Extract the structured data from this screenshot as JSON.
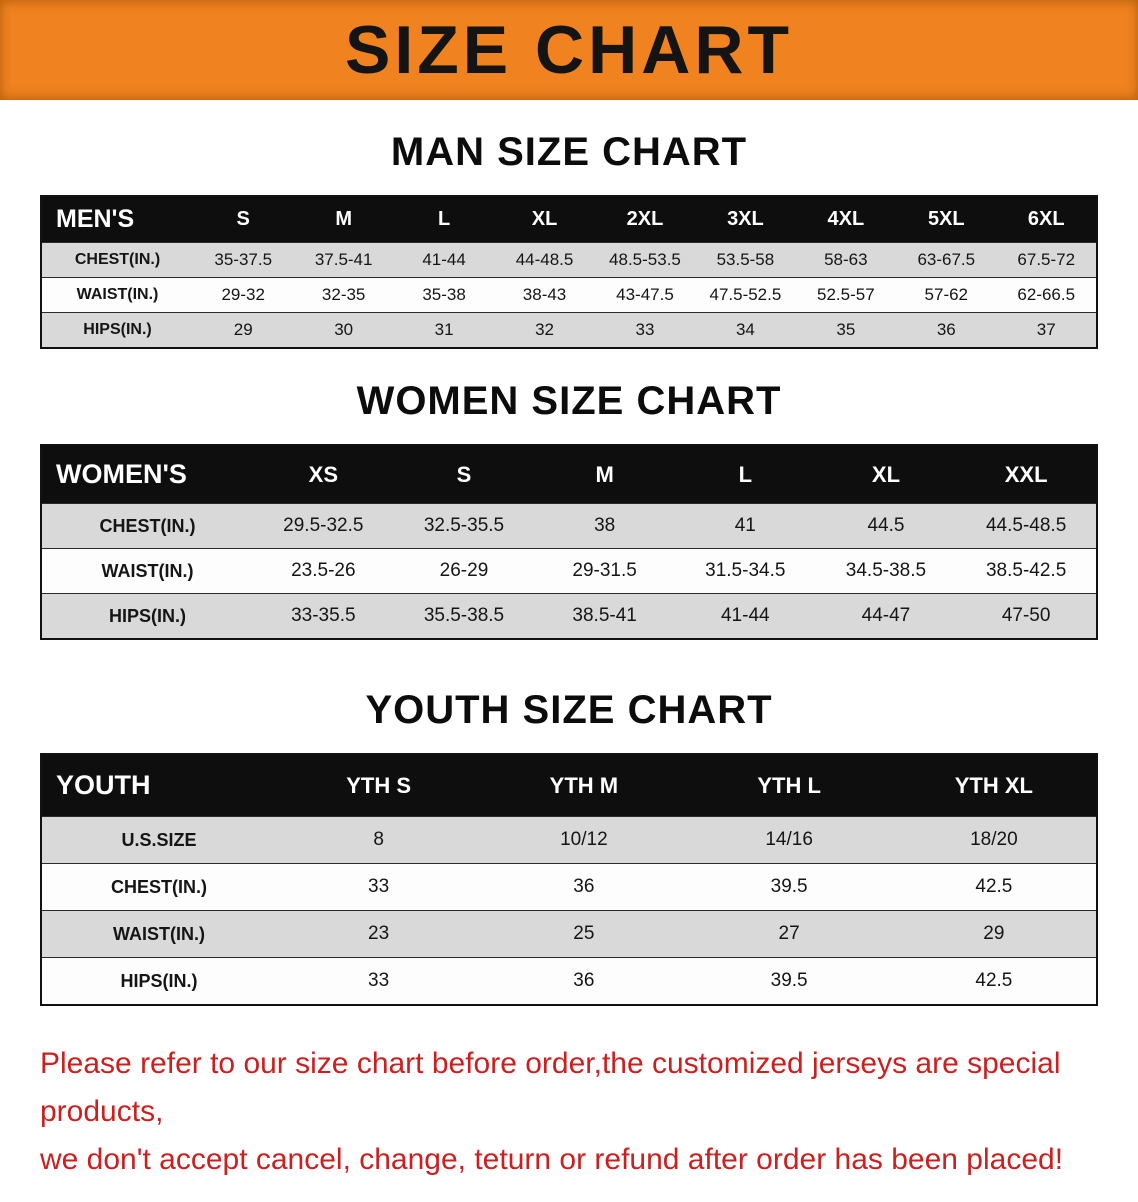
{
  "banner": {
    "title": "SIZE CHART",
    "background_color": "#f0831f",
    "text_color": "#141414"
  },
  "sections": [
    {
      "heading": "MAN SIZE CHART",
      "table": {
        "header": [
          "MEN'S",
          "S",
          "M",
          "L",
          "XL",
          "2XL",
          "3XL",
          "4XL",
          "5XL",
          "6XL"
        ],
        "rows": [
          [
            "CHEST(IN.)",
            "35-37.5",
            "37.5-41",
            "41-44",
            "44-48.5",
            "48.5-53.5",
            "53.5-58",
            "58-63",
            "63-67.5",
            "67.5-72"
          ],
          [
            "WAIST(IN.)",
            "29-32",
            "32-35",
            "35-38",
            "38-43",
            "43-47.5",
            "47.5-52.5",
            "52.5-57",
            "57-62",
            "62-66.5"
          ],
          [
            "HIPS(IN.)",
            "29",
            "30",
            "31",
            "32",
            "33",
            "34",
            "35",
            "36",
            "37"
          ]
        ]
      }
    },
    {
      "heading": "WOMEN SIZE CHART",
      "table": {
        "header": [
          "WOMEN'S",
          "XS",
          "S",
          "M",
          "L",
          "XL",
          "XXL"
        ],
        "rows": [
          [
            "CHEST(IN.)",
            "29.5-32.5",
            "32.5-35.5",
            "38",
            "41",
            "44.5",
            "44.5-48.5"
          ],
          [
            "WAIST(IN.)",
            "23.5-26",
            "26-29",
            "29-31.5",
            "31.5-34.5",
            "34.5-38.5",
            "38.5-42.5"
          ],
          [
            "HIPS(IN.)",
            "33-35.5",
            "35.5-38.5",
            "38.5-41",
            "41-44",
            "44-47",
            "47-50"
          ]
        ]
      }
    },
    {
      "heading": "YOUTH SIZE CHART",
      "table": {
        "header": [
          "YOUTH",
          "YTH S",
          "YTH M",
          "YTH L",
          "YTH XL"
        ],
        "rows": [
          [
            "U.S.SIZE",
            "8",
            "10/12",
            "14/16",
            "18/20"
          ],
          [
            "CHEST(IN.)",
            "33",
            "36",
            "39.5",
            "42.5"
          ],
          [
            "WAIST(IN.)",
            "23",
            "25",
            "27",
            "29"
          ],
          [
            "HIPS(IN.)",
            "33",
            "36",
            "39.5",
            "42.5"
          ]
        ]
      }
    }
  ],
  "footer": {
    "line1": "Please refer to our size chart before order,the customized jerseys are special products,",
    "line2": "we don't accept cancel, change, teturn or refund after order has been placed!",
    "text_color": "#cc1f1f"
  }
}
